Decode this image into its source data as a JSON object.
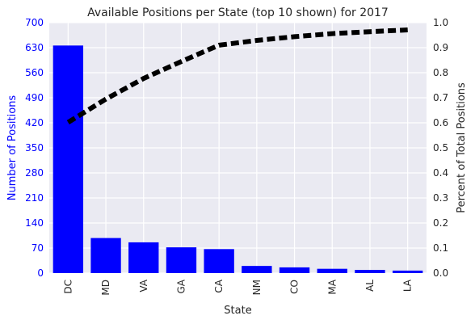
{
  "chart_data": {
    "type": "bar",
    "title": "Available Positions per State (top 10 shown) for 2017",
    "xlabel": "State",
    "ylabel": "Number of Positions",
    "y2label": "Percent of Total Positions",
    "categories": [
      "DC",
      "MD",
      "VA",
      "GA",
      "CA",
      "NM",
      "CO",
      "MA",
      "AL",
      "LA"
    ],
    "series": [
      {
        "type": "bar",
        "axis": "left",
        "color": "#0000ff",
        "values": [
          636,
          98,
          86,
          72,
          67,
          20,
          16,
          12,
          9,
          7
        ]
      },
      {
        "type": "line",
        "axis": "right",
        "color": "#000000",
        "style": "dashed",
        "values": [
          0.602,
          0.695,
          0.777,
          0.845,
          0.91,
          0.929,
          0.944,
          0.956,
          0.964,
          0.971
        ]
      }
    ],
    "ylim": [
      0,
      700
    ],
    "y2lim": [
      0,
      1.0
    ],
    "yticks": [
      "0",
      "70",
      "140",
      "210",
      "280",
      "350",
      "420",
      "490",
      "560",
      "630",
      "700"
    ],
    "y2ticks": [
      "0.0",
      "0.1",
      "0.2",
      "0.3",
      "0.4",
      "0.5",
      "0.6",
      "0.7",
      "0.8",
      "0.9",
      "1.0"
    ],
    "grid": true,
    "background": "#eaeaf2"
  }
}
